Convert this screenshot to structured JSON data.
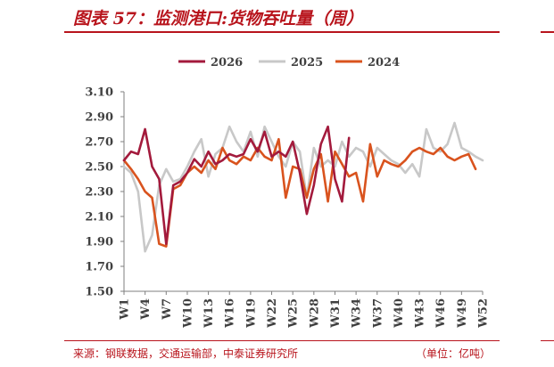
{
  "figure": {
    "title": "图表 57：监测港口:货物吞吐量（周）",
    "source": "来源：钢联数据，交通运输部，中泰证券研究所",
    "unit": "（单位：亿吨）"
  },
  "chart_data": {
    "type": "line",
    "title": "",
    "xlabel": "",
    "ylabel": "",
    "ylim": [
      1.5,
      3.1
    ],
    "yticks": [
      "3.10",
      "2.90",
      "2.70",
      "2.50",
      "2.30",
      "2.10",
      "1.90",
      "1.70",
      "1.50"
    ],
    "xticks": [
      "W1",
      "W4",
      "W7",
      "W10",
      "W13",
      "W16",
      "W19",
      "W22",
      "W25",
      "W28",
      "W31",
      "W34",
      "W37",
      "W40",
      "W43",
      "W46",
      "W49",
      "W52"
    ],
    "legend_position": "top",
    "grid": false,
    "x": [
      1,
      2,
      3,
      4,
      5,
      6,
      7,
      8,
      9,
      10,
      11,
      12,
      13,
      14,
      15,
      16,
      17,
      18,
      19,
      20,
      21,
      22,
      23,
      24,
      25,
      26,
      27,
      28,
      29,
      30,
      31,
      32,
      33,
      34,
      35,
      36,
      37,
      38,
      39,
      40,
      41,
      42,
      43,
      44,
      45,
      46,
      47,
      48,
      49,
      50,
      51,
      52
    ],
    "series": [
      {
        "name": "2026",
        "color": "#a31a3c",
        "values": [
          2.55,
          2.62,
          2.6,
          2.8,
          2.5,
          2.4,
          1.88,
          2.35,
          2.38,
          2.45,
          2.56,
          2.5,
          2.62,
          2.52,
          2.55,
          2.6,
          2.58,
          2.6,
          2.72,
          2.62,
          2.78,
          2.58,
          2.62,
          2.58,
          2.7,
          2.45,
          2.12,
          2.35,
          2.68,
          2.82,
          2.4,
          2.22,
          2.73,
          null,
          null,
          null,
          null,
          null,
          null,
          null,
          null,
          null,
          null,
          null,
          null,
          null,
          null,
          null,
          null,
          null,
          null,
          null
        ]
      },
      {
        "name": "2025",
        "color": "#c8c8c8",
        "values": [
          2.5,
          2.45,
          2.3,
          1.82,
          1.95,
          2.35,
          2.48,
          2.38,
          2.4,
          2.5,
          2.62,
          2.72,
          2.42,
          2.6,
          2.65,
          2.82,
          2.7,
          2.62,
          2.78,
          2.58,
          2.82,
          2.7,
          2.58,
          2.5,
          2.7,
          2.62,
          2.25,
          2.65,
          2.5,
          2.55,
          2.5,
          2.7,
          2.58,
          2.65,
          2.62,
          2.5,
          2.65,
          2.6,
          2.55,
          2.52,
          2.45,
          2.52,
          2.42,
          2.8,
          2.65,
          2.62,
          2.68,
          2.85,
          2.65,
          2.62,
          2.58,
          2.55
        ]
      },
      {
        "name": "2024",
        "color": "#d9531e",
        "values": [
          2.55,
          2.48,
          2.4,
          2.3,
          2.25,
          1.88,
          1.86,
          2.32,
          2.35,
          2.45,
          2.5,
          2.45,
          2.55,
          2.48,
          2.65,
          2.55,
          2.52,
          2.58,
          2.55,
          2.65,
          2.58,
          2.55,
          2.72,
          2.25,
          2.5,
          2.48,
          2.25,
          2.48,
          2.6,
          2.22,
          2.62,
          2.52,
          2.42,
          2.45,
          2.22,
          2.68,
          2.42,
          2.55,
          2.52,
          2.5,
          2.55,
          2.62,
          2.65,
          2.62,
          2.6,
          2.65,
          2.58,
          2.55,
          2.58,
          2.6,
          2.48,
          null
        ]
      }
    ]
  }
}
